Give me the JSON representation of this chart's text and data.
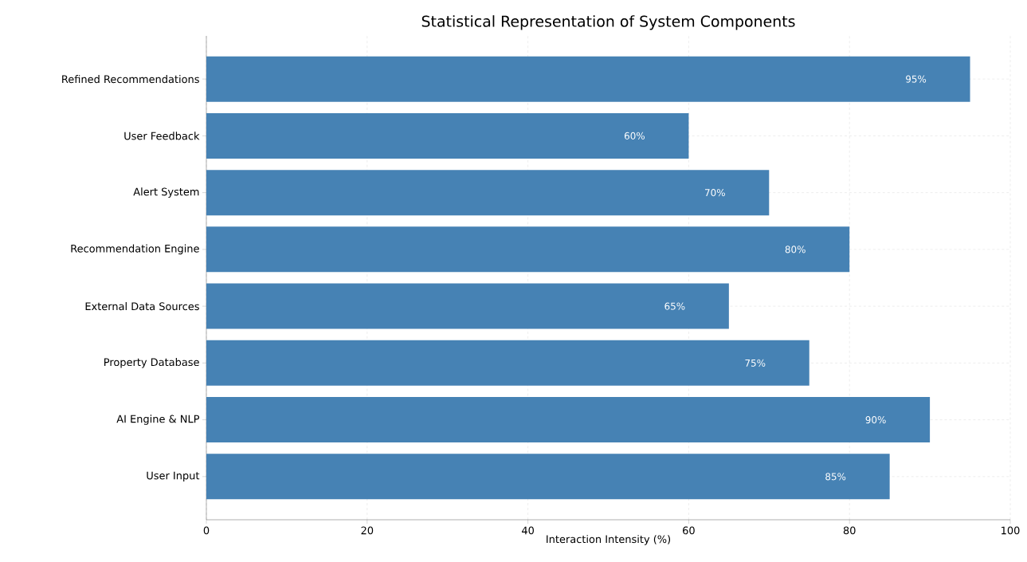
{
  "chart_data": {
    "type": "bar",
    "orientation": "horizontal",
    "title": "Statistical Representation of System Components",
    "xlabel": "Interaction Intensity (%)",
    "categories": [
      "Refined Recommendations",
      "User Feedback",
      "Alert System",
      "Recommendation Engine",
      "External Data Sources",
      "Property Database",
      "AI Engine & NLP",
      "User Input"
    ],
    "values": [
      95,
      60,
      70,
      80,
      65,
      75,
      90,
      85
    ],
    "value_labels": [
      "95%",
      "60%",
      "70%",
      "80%",
      "65%",
      "75%",
      "90%",
      "85%"
    ],
    "color": "#4682b4",
    "xlim": [
      0,
      100
    ],
    "xticks": [
      0,
      20,
      40,
      60,
      80,
      100
    ],
    "grid": true
  }
}
